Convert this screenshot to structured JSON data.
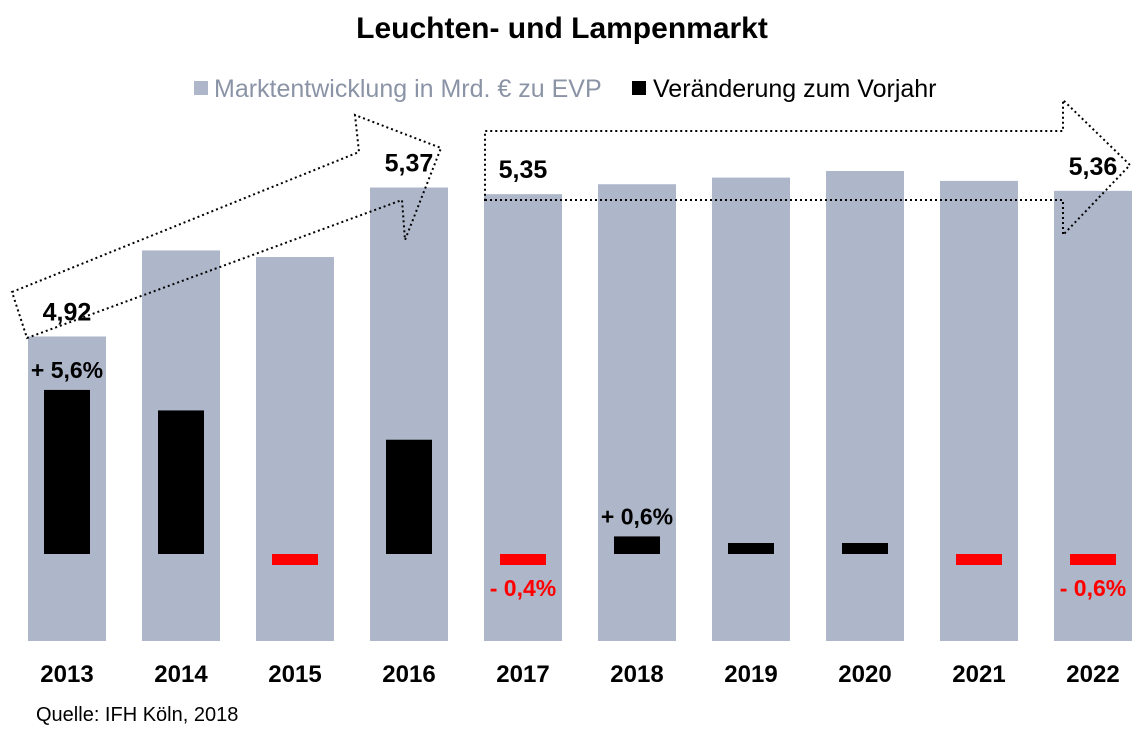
{
  "chart_data": {
    "type": "bar",
    "title": "Leuchten- und Lampenmarkt",
    "source": "Quelle: IFH Köln, 2018",
    "categories": [
      "2013",
      "2014",
      "2015",
      "2016",
      "2017",
      "2018",
      "2019",
      "2020",
      "2021",
      "2022"
    ],
    "series": [
      {
        "name": "Marktentwicklung in Mrd. € zu EVP",
        "color": "#aeb7c9",
        "values": [
          4.92,
          5.18,
          5.16,
          5.37,
          5.35,
          5.38,
          5.4,
          5.42,
          5.39,
          5.36
        ]
      },
      {
        "name": "Veränderung zum Vorjahr",
        "color": "#000000",
        "negative_color": "#ff0000",
        "values": [
          5.6,
          4.9,
          -0.4,
          3.9,
          -0.4,
          0.6,
          0.3,
          0.3,
          -0.6,
          -0.6
        ]
      }
    ],
    "value_labels": [
      {
        "category": "2013",
        "text": "4,92"
      },
      {
        "category": "2016",
        "text": "5,37"
      },
      {
        "category": "2017",
        "text": "5,35"
      },
      {
        "category": "2022",
        "text": "5,36"
      }
    ],
    "change_labels": [
      {
        "category": "2013",
        "text": "+ 5,6%",
        "color": "#000000"
      },
      {
        "category": "2017",
        "text": "- 0,4%",
        "color": "#ff0000"
      },
      {
        "category": "2018",
        "text": "+ 0,6%",
        "color": "#000000"
      },
      {
        "category": "2022",
        "text": "- 0,6%",
        "color": "#ff0000"
      }
    ],
    "annotations": [
      "trend arrow 2013-2016 (rising)",
      "trend arrow 2017-2022 (flat)"
    ],
    "legend_position": "top",
    "grid": false
  }
}
